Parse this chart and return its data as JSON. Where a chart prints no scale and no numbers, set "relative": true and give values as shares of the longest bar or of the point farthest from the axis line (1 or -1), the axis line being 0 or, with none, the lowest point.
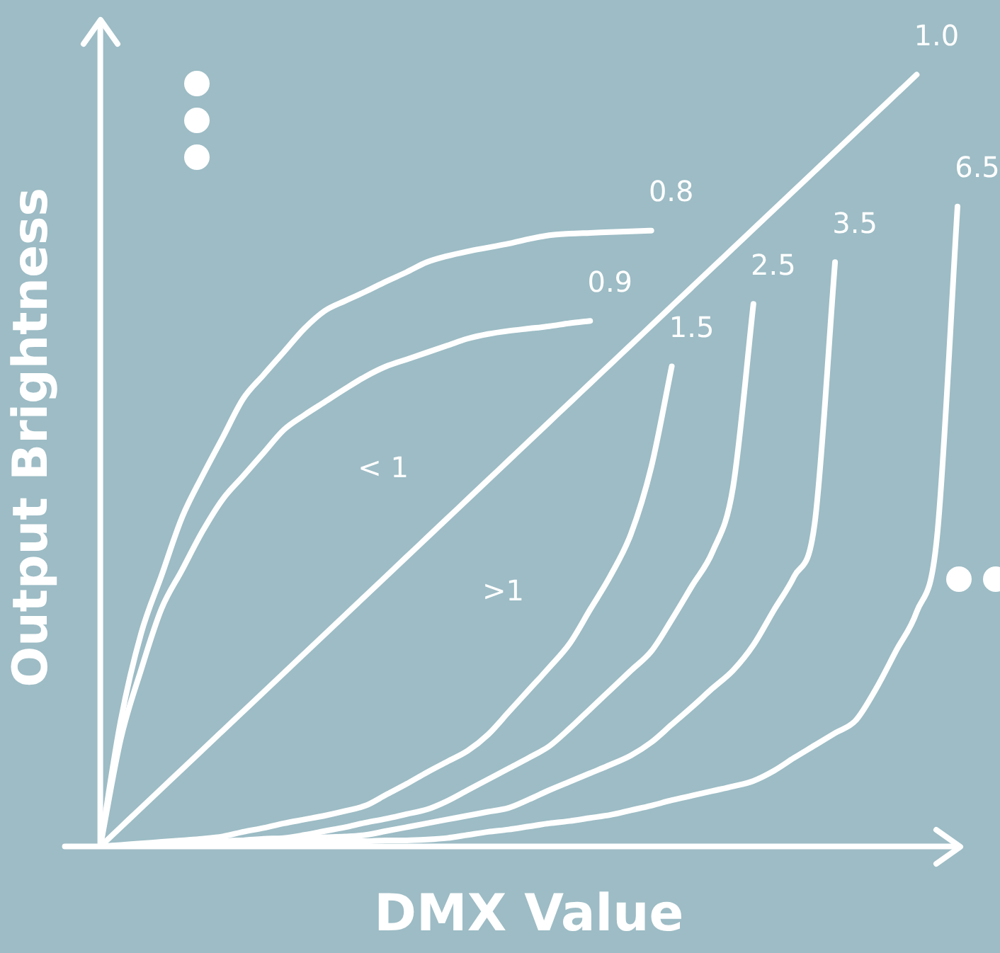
{
  "chart_data": {
    "type": "line",
    "relative": true,
    "xlabel": "DMX Value",
    "ylabel": "Output Brightness",
    "tick_labels": false,
    "grid": false,
    "legend": false,
    "marker": "none",
    "line_style": "solid",
    "annotations": [
      "< 1",
      ">1"
    ],
    "categories": [
      null,
      null,
      null,
      null,
      null,
      null,
      null,
      null,
      null,
      null,
      null,
      null,
      null,
      null,
      null,
      null,
      null,
      null,
      null,
      null,
      null,
      null,
      null,
      null,
      null,
      null,
      null,
      null,
      null,
      null,
      null,
      null,
      null,
      null,
      null,
      null,
      null,
      null,
      null,
      null,
      null,
      null,
      null
    ],
    "series": [
      {
        "name": "0.8",
        "color": "#ffffff",
        "values": [
          0,
          0.163,
          0.276,
          0.351,
          0.426,
          0.48,
          0.53,
          0.58,
          0.611,
          0.641,
          0.671,
          0.694,
          0.707,
          0.719,
          0.732,
          0.744,
          0.757,
          0.765,
          0.771,
          0.776,
          0.781,
          0.787,
          0.792,
          0.794,
          0.795,
          0.796,
          0.797,
          0.798,
          null,
          null,
          null,
          null,
          null,
          null,
          null,
          null,
          null,
          null,
          null,
          null,
          null,
          null,
          null
        ]
      },
      {
        "name": "0.9",
        "color": "#ffffff",
        "values": [
          0,
          0.139,
          0.229,
          0.308,
          0.358,
          0.408,
          0.45,
          0.48,
          0.51,
          0.54,
          0.559,
          0.576,
          0.593,
          0.609,
          0.622,
          0.631,
          0.64,
          0.649,
          0.658,
          0.664,
          0.668,
          0.671,
          0.674,
          0.678,
          0.681,
          null,
          null,
          null,
          null,
          null,
          null,
          null,
          null,
          null,
          null,
          null,
          null,
          null,
          null,
          null,
          null,
          null,
          null
        ]
      },
      {
        "name": "1.0",
        "color": "#ffffff",
        "values": [
          0,
          0.025,
          0.05,
          0.075,
          0.1,
          0.125,
          0.15,
          0.175,
          0.2,
          0.225,
          0.25,
          0.275,
          0.3,
          0.325,
          0.35,
          0.375,
          0.4,
          0.425,
          0.45,
          0.475,
          0.5,
          0.525,
          0.55,
          0.575,
          0.6,
          0.625,
          0.65,
          0.675,
          0.7,
          0.725,
          0.75,
          0.775,
          0.8,
          0.825,
          0.85,
          0.875,
          0.9,
          0.925,
          0.95,
          0.975,
          1,
          null,
          null
        ]
      },
      {
        "name": "1.5",
        "color": "#ffffff",
        "values": [
          0,
          0.002,
          0.004,
          0.006,
          0.008,
          0.01,
          0.013,
          0.019,
          0.024,
          0.03,
          0.035,
          0.04,
          0.046,
          0.053,
          0.067,
          0.081,
          0.096,
          0.11,
          0.124,
          0.145,
          0.174,
          0.203,
          0.232,
          0.263,
          0.307,
          0.351,
          0.405,
          0.492,
          0.622,
          null,
          null,
          null,
          null,
          null,
          null,
          null,
          null,
          null,
          null,
          null,
          null,
          null,
          null
        ]
      },
      {
        "name": "2.5",
        "color": "#ffffff",
        "values": [
          0,
          0.001,
          0.002,
          0.004,
          0.005,
          0.006,
          0.007,
          0.008,
          0.01,
          0.011,
          0.015,
          0.02,
          0.025,
          0.031,
          0.036,
          0.042,
          0.048,
          0.059,
          0.073,
          0.087,
          0.101,
          0.115,
          0.13,
          0.153,
          0.178,
          0.203,
          0.228,
          0.253,
          0.294,
          0.338,
          0.382,
          0.465,
          0.703,
          null,
          null,
          null,
          null,
          null,
          null,
          null,
          null,
          null,
          null
        ]
      },
      {
        "name": "3.5",
        "color": "#ffffff",
        "values": [
          0,
          0.001,
          0.002,
          0.003,
          0.004,
          0.005,
          0.007,
          0.008,
          0.009,
          0.01,
          0.011,
          0.012,
          0.013,
          0.015,
          0.02,
          0.025,
          0.03,
          0.035,
          0.04,
          0.045,
          0.05,
          0.061,
          0.073,
          0.084,
          0.095,
          0.106,
          0.118,
          0.135,
          0.158,
          0.181,
          0.205,
          0.228,
          0.261,
          0.306,
          0.35,
          0.418,
          0.757,
          null,
          null,
          null,
          null,
          null,
          null
        ]
      },
      {
        "name": "6.5",
        "color": "#ffffff",
        "values": [
          0,
          0.001,
          0.001,
          0.002,
          0.002,
          0.003,
          0.003,
          0.004,
          0.004,
          0.005,
          0.005,
          0.006,
          0.007,
          0.007,
          0.008,
          0.008,
          0.009,
          0.011,
          0.015,
          0.019,
          0.022,
          0.026,
          0.03,
          0.033,
          0.037,
          0.041,
          0.047,
          0.053,
          0.06,
          0.066,
          0.072,
          0.078,
          0.085,
          0.098,
          0.115,
          0.131,
          0.147,
          0.163,
          0.204,
          0.254,
          0.304,
          0.402,
          0.829
        ]
      }
    ]
  }
}
